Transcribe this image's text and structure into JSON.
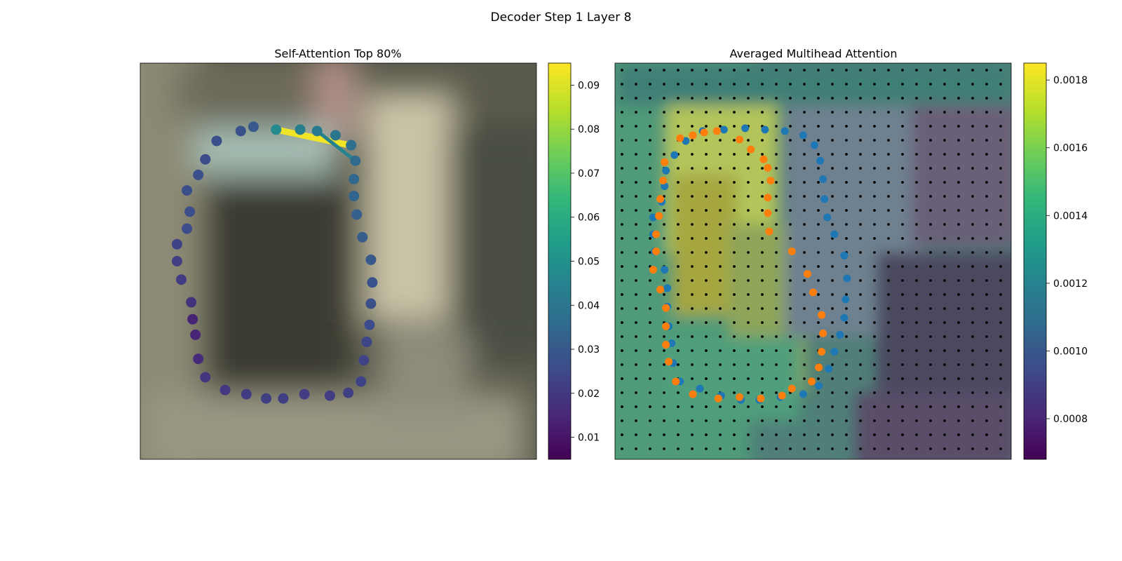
{
  "figure": {
    "title": "Decoder Step 1 Layer 8"
  },
  "colors": {
    "viridis": [
      "#440154",
      "#482878",
      "#3e4989",
      "#31688e",
      "#26828e",
      "#1f9e89",
      "#35b779",
      "#6ece58",
      "#b5de2b",
      "#fde725"
    ],
    "blue": "#1f77b4",
    "orange": "#ff7f0e",
    "grid_dot": "#000000",
    "edge_line": "#fde725"
  },
  "chart_data": [
    {
      "type": "scatter",
      "title": "Self-Attention Top 80%",
      "xlim": [
        0,
        28
      ],
      "ylim": [
        28,
        0
      ],
      "background": "blurred image patch",
      "points": [
        {
          "x": 9.6,
          "y": 4.7,
          "v": 0.048
        },
        {
          "x": 11.3,
          "y": 4.7,
          "v": 0.044
        },
        {
          "x": 12.5,
          "y": 4.8,
          "v": 0.042
        },
        {
          "x": 13.8,
          "y": 5.1,
          "v": 0.04
        },
        {
          "x": 14.9,
          "y": 5.8,
          "v": 0.038
        },
        {
          "x": 15.2,
          "y": 6.9,
          "v": 0.036
        },
        {
          "x": 15.1,
          "y": 8.2,
          "v": 0.035
        },
        {
          "x": 15.1,
          "y": 9.4,
          "v": 0.034
        },
        {
          "x": 15.3,
          "y": 10.7,
          "v": 0.032
        },
        {
          "x": 15.7,
          "y": 12.3,
          "v": 0.031
        },
        {
          "x": 16.3,
          "y": 13.9,
          "v": 0.03
        },
        {
          "x": 16.4,
          "y": 15.5,
          "v": 0.028
        },
        {
          "x": 16.3,
          "y": 17.0,
          "v": 0.027
        },
        {
          "x": 16.2,
          "y": 18.5,
          "v": 0.026
        },
        {
          "x": 16.0,
          "y": 19.7,
          "v": 0.024
        },
        {
          "x": 15.8,
          "y": 21.0,
          "v": 0.023
        },
        {
          "x": 15.6,
          "y": 22.5,
          "v": 0.023
        },
        {
          "x": 14.7,
          "y": 23.3,
          "v": 0.022
        },
        {
          "x": 13.4,
          "y": 23.5,
          "v": 0.021
        },
        {
          "x": 11.6,
          "y": 23.4,
          "v": 0.021
        },
        {
          "x": 10.1,
          "y": 23.7,
          "v": 0.022
        },
        {
          "x": 8.9,
          "y": 23.7,
          "v": 0.022
        },
        {
          "x": 7.5,
          "y": 23.4,
          "v": 0.021
        },
        {
          "x": 6.0,
          "y": 23.1,
          "v": 0.02
        },
        {
          "x": 4.6,
          "y": 22.2,
          "v": 0.019
        },
        {
          "x": 4.1,
          "y": 20.9,
          "v": 0.016
        },
        {
          "x": 3.9,
          "y": 19.2,
          "v": 0.014
        },
        {
          "x": 3.7,
          "y": 18.1,
          "v": 0.014
        },
        {
          "x": 3.6,
          "y": 16.9,
          "v": 0.016
        },
        {
          "x": 3.6,
          "y": 16.9,
          "v": 0.018
        },
        {
          "x": 3.6,
          "y": 16.9,
          "v": 0.018
        },
        {
          "x": 3.6,
          "y": 16.9,
          "v": 0.018
        },
        {
          "x": 3.6,
          "y": 16.9,
          "v": 0.018
        },
        {
          "x": 3.6,
          "y": 16.9,
          "v": 0.018
        }
      ],
      "outline": [
        {
          "x": 9.6,
          "y": 4.7,
          "v": 0.048
        },
        {
          "x": 8.0,
          "y": 4.5,
          "v": 0.03
        },
        {
          "x": 7.1,
          "y": 4.8,
          "v": 0.028
        },
        {
          "x": 5.4,
          "y": 5.5,
          "v": 0.027
        },
        {
          "x": 4.6,
          "y": 6.8,
          "v": 0.026
        },
        {
          "x": 4.1,
          "y": 7.9,
          "v": 0.027
        },
        {
          "x": 3.3,
          "y": 9.0,
          "v": 0.027
        },
        {
          "x": 3.5,
          "y": 10.5,
          "v": 0.027
        },
        {
          "x": 3.3,
          "y": 11.7,
          "v": 0.026
        },
        {
          "x": 2.6,
          "y": 12.8,
          "v": 0.023
        },
        {
          "x": 2.6,
          "y": 14.0,
          "v": 0.022
        },
        {
          "x": 2.9,
          "y": 15.3,
          "v": 0.021
        },
        {
          "x": 3.6,
          "y": 16.9,
          "v": 0.018
        },
        {
          "x": 3.7,
          "y": 18.1,
          "v": 0.014
        },
        {
          "x": 3.9,
          "y": 19.2,
          "v": 0.014
        },
        {
          "x": 4.1,
          "y": 20.9,
          "v": 0.016
        },
        {
          "x": 4.6,
          "y": 22.2,
          "v": 0.019
        },
        {
          "x": 6.0,
          "y": 23.1,
          "v": 0.02
        },
        {
          "x": 7.5,
          "y": 23.4,
          "v": 0.021
        },
        {
          "x": 8.9,
          "y": 23.7,
          "v": 0.022
        },
        {
          "x": 10.1,
          "y": 23.7,
          "v": 0.022
        },
        {
          "x": 11.6,
          "y": 23.4,
          "v": 0.021
        },
        {
          "x": 13.4,
          "y": 23.5,
          "v": 0.021
        },
        {
          "x": 14.7,
          "y": 23.3,
          "v": 0.022
        },
        {
          "x": 15.6,
          "y": 22.5,
          "v": 0.023
        },
        {
          "x": 15.8,
          "y": 21.0,
          "v": 0.023
        },
        {
          "x": 16.0,
          "y": 19.7,
          "v": 0.024
        },
        {
          "x": 16.2,
          "y": 18.5,
          "v": 0.026
        },
        {
          "x": 16.3,
          "y": 17.0,
          "v": 0.027
        },
        {
          "x": 16.4,
          "y": 15.5,
          "v": 0.028
        },
        {
          "x": 16.3,
          "y": 13.9,
          "v": 0.03
        },
        {
          "x": 15.7,
          "y": 12.3,
          "v": 0.031
        },
        {
          "x": 15.3,
          "y": 10.7,
          "v": 0.032
        },
        {
          "x": 15.1,
          "y": 9.4,
          "v": 0.034
        },
        {
          "x": 15.1,
          "y": 8.2,
          "v": 0.035
        },
        {
          "x": 15.2,
          "y": 6.9,
          "v": 0.036
        },
        {
          "x": 14.9,
          "y": 5.8,
          "v": 0.038
        },
        {
          "x": 13.8,
          "y": 5.1,
          "v": 0.04
        },
        {
          "x": 12.5,
          "y": 4.8,
          "v": 0.042
        },
        {
          "x": 11.3,
          "y": 4.7,
          "v": 0.044
        }
      ],
      "edges": [
        {
          "from": [
            9.6,
            4.7
          ],
          "to": [
            14.8,
            5.8
          ],
          "v": 0.093
        },
        {
          "from": [
            12.5,
            4.8
          ],
          "to": [
            15.2,
            6.9
          ],
          "v": 0.045
        }
      ],
      "colorbar": {
        "min": 0.005,
        "max": 0.095,
        "ticks": [
          "0.01",
          "0.02",
          "0.03",
          "0.04",
          "0.05",
          "0.06",
          "0.07",
          "0.08",
          "0.09"
        ],
        "tick_values": [
          0.01,
          0.02,
          0.03,
          0.04,
          0.05,
          0.06,
          0.07,
          0.08,
          0.09
        ]
      }
    },
    {
      "type": "scatter",
      "title": "Averaged Multihead Attention",
      "xlim": [
        0,
        28
      ],
      "ylim": [
        28,
        0
      ],
      "background": "attention heatmap over image",
      "grid": true,
      "series": [
        {
          "color_key": "blue",
          "points": [
            [
              7.7,
              4.7
            ],
            [
              9.2,
              4.6
            ],
            [
              10.6,
              4.7
            ],
            [
              12.0,
              4.8
            ],
            [
              13.3,
              5.1
            ],
            [
              14.1,
              5.8
            ],
            [
              14.5,
              6.9
            ],
            [
              14.7,
              8.2
            ],
            [
              14.8,
              9.6
            ],
            [
              15.0,
              10.9
            ],
            [
              15.5,
              12.1
            ],
            [
              16.2,
              13.6
            ],
            [
              16.4,
              15.2
            ],
            [
              16.3,
              16.7
            ],
            [
              16.2,
              18.0
            ],
            [
              15.9,
              19.2
            ],
            [
              15.5,
              20.4
            ],
            [
              15.1,
              21.6
            ],
            [
              14.4,
              22.8
            ],
            [
              13.3,
              23.4
            ],
            [
              11.7,
              23.6
            ],
            [
              10.2,
              23.8
            ],
            [
              8.9,
              23.8
            ],
            [
              7.5,
              23.5
            ],
            [
              6.0,
              23.0
            ],
            [
              4.6,
              22.5
            ],
            [
              4.1,
              21.2
            ],
            [
              4.0,
              19.8
            ],
            [
              3.8,
              18.6
            ],
            [
              3.7,
              17.2
            ],
            [
              3.7,
              15.9
            ],
            [
              3.5,
              14.6
            ],
            [
              2.8,
              13.3
            ],
            [
              2.7,
              12.1
            ],
            [
              2.7,
              10.9
            ],
            [
              3.3,
              9.8
            ],
            [
              3.5,
              8.7
            ],
            [
              3.6,
              7.6
            ],
            [
              4.2,
              6.5
            ],
            [
              5.0,
              5.5
            ],
            [
              6.2,
              4.8
            ]
          ]
        },
        {
          "color_key": "orange",
          "points": [
            [
              4.6,
              5.3
            ],
            [
              5.5,
              5.1
            ],
            [
              6.3,
              4.9
            ],
            [
              7.2,
              4.8
            ],
            [
              8.8,
              5.4
            ],
            [
              9.6,
              6.1
            ],
            [
              10.5,
              6.8
            ],
            [
              10.8,
              7.4
            ],
            [
              11.0,
              8.3
            ],
            [
              10.8,
              9.5
            ],
            [
              10.8,
              10.6
            ],
            [
              10.9,
              11.9
            ],
            [
              12.5,
              13.3
            ],
            [
              13.6,
              14.9
            ],
            [
              14.0,
              16.2
            ],
            [
              14.6,
              17.8
            ],
            [
              14.7,
              19.1
            ],
            [
              14.6,
              20.4
            ],
            [
              14.4,
              21.5
            ],
            [
              13.9,
              22.5
            ],
            [
              12.5,
              23.0
            ],
            [
              11.8,
              23.5
            ],
            [
              10.3,
              23.7
            ],
            [
              8.8,
              23.6
            ],
            [
              7.3,
              23.7
            ],
            [
              5.5,
              23.4
            ],
            [
              4.3,
              22.5
            ],
            [
              3.8,
              21.1
            ],
            [
              3.6,
              19.9
            ],
            [
              3.6,
              18.6
            ],
            [
              3.6,
              17.3
            ],
            [
              3.2,
              16.0
            ],
            [
              2.7,
              14.6
            ],
            [
              2.9,
              13.3
            ],
            [
              2.9,
              12.1
            ],
            [
              3.1,
              10.8
            ],
            [
              3.2,
              9.6
            ],
            [
              3.4,
              8.3
            ],
            [
              3.5,
              7.0
            ]
          ]
        }
      ],
      "colorbar": {
        "min": 0.00068,
        "max": 0.00185,
        "ticks": [
          "0.0008",
          "0.0010",
          "0.0012",
          "0.0014",
          "0.0016",
          "0.0018"
        ],
        "tick_values": [
          0.0008,
          0.001,
          0.0012,
          0.0014,
          0.0016,
          0.0018
        ]
      }
    }
  ]
}
